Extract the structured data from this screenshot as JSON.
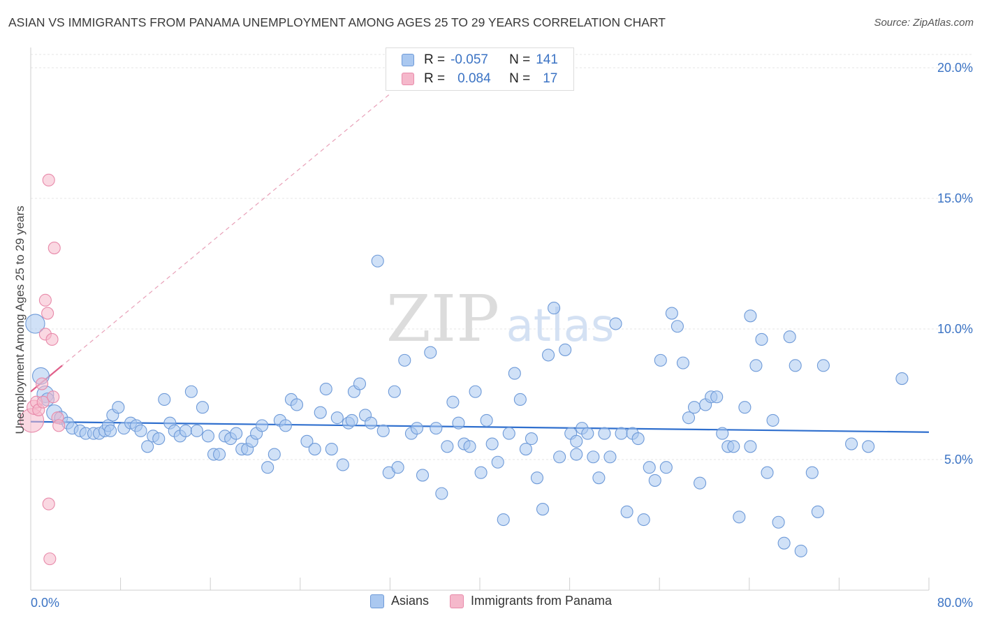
{
  "title": "ASIAN VS IMMIGRANTS FROM PANAMA UNEMPLOYMENT AMONG AGES 25 TO 29 YEARS CORRELATION CHART",
  "source": "Source: ZipAtlas.com",
  "watermark": {
    "zip": "ZIP",
    "atlas": "atlas"
  },
  "stats": [
    {
      "r_label": "R =",
      "r_value": "-0.057",
      "n_label": "N =",
      "n_value": "141",
      "fill": "#aac8f0",
      "stroke": "#6e9ad8"
    },
    {
      "r_label": "R =",
      "r_value": "0.084",
      "n_label": "N =",
      "n_value": "17",
      "fill": "#f5b8cb",
      "stroke": "#e88aaa"
    }
  ],
  "legend": [
    {
      "label": "Asians",
      "fill": "#aac8f0",
      "stroke": "#6e9ad8"
    },
    {
      "label": "Immigrants from Panama",
      "fill": "#f5b8cb",
      "stroke": "#e88aaa"
    }
  ],
  "chart_data": {
    "type": "scatter",
    "title": "ASIAN VS IMMIGRANTS FROM PANAMA UNEMPLOYMENT AMONG AGES 25 TO 29 YEARS CORRELATION CHART",
    "xlabel": "",
    "ylabel": "Unemployment Among Ages 25 to 29 years",
    "xlim": [
      0,
      80
    ],
    "ylim": [
      0,
      20
    ],
    "x_tick_labels": [
      "0.0%",
      "80.0%"
    ],
    "y_ticks": [
      5,
      10,
      15,
      20
    ],
    "y_tick_labels": [
      "5.0%",
      "10.0%",
      "15.0%",
      "20.0%"
    ],
    "grid": true,
    "series": [
      {
        "name": "Asians",
        "color": "#6e9ad8",
        "fill": "#aac8f0",
        "trend": {
          "x": [
            0,
            80
          ],
          "y": [
            6.45,
            6.05
          ]
        },
        "points": [
          [
            0.4,
            10.2,
            1.6
          ],
          [
            0.9,
            8.2,
            1.4
          ],
          [
            1.3,
            7.5,
            1.4
          ],
          [
            1.5,
            7.3,
            1.1
          ],
          [
            2.1,
            6.8,
            1.3
          ],
          [
            2.7,
            6.6,
            1.1
          ],
          [
            3.3,
            6.4,
            1
          ],
          [
            3.7,
            6.2,
            1
          ],
          [
            4.4,
            6.1,
            1
          ],
          [
            4.9,
            6.0,
            1
          ],
          [
            5.6,
            6.0,
            1
          ],
          [
            6.1,
            6.0,
            1
          ],
          [
            6.6,
            6.1,
            1
          ],
          [
            6.9,
            6.3,
            1
          ],
          [
            7.1,
            6.1,
            1
          ],
          [
            7.3,
            6.7,
            1
          ],
          [
            7.8,
            7.0,
            1
          ],
          [
            8.3,
            6.2,
            1
          ],
          [
            8.9,
            6.4,
            1
          ],
          [
            9.4,
            6.3,
            1
          ],
          [
            9.8,
            6.1,
            1
          ],
          [
            10.4,
            5.5,
            1
          ],
          [
            10.9,
            5.9,
            1
          ],
          [
            11.4,
            5.8,
            1
          ],
          [
            11.9,
            7.3,
            1
          ],
          [
            12.4,
            6.4,
            1
          ],
          [
            12.8,
            6.1,
            1
          ],
          [
            13.3,
            5.9,
            1
          ],
          [
            13.8,
            6.1,
            1
          ],
          [
            14.3,
            7.6,
            1
          ],
          [
            14.8,
            6.1,
            1
          ],
          [
            15.3,
            7.0,
            1
          ],
          [
            15.8,
            5.9,
            1
          ],
          [
            16.3,
            5.2,
            1
          ],
          [
            16.8,
            5.2,
            1
          ],
          [
            17.3,
            5.9,
            1
          ],
          [
            17.8,
            5.8,
            1
          ],
          [
            18.3,
            6.0,
            1
          ],
          [
            18.8,
            5.4,
            1
          ],
          [
            19.3,
            5.4,
            1
          ],
          [
            19.7,
            5.7,
            1
          ],
          [
            20.1,
            6.0,
            1
          ],
          [
            20.6,
            6.3,
            1
          ],
          [
            21.1,
            4.7,
            1
          ],
          [
            21.7,
            5.2,
            1
          ],
          [
            22.2,
            6.5,
            1
          ],
          [
            22.7,
            6.3,
            1
          ],
          [
            23.2,
            7.3,
            1
          ],
          [
            23.7,
            7.1,
            1
          ],
          [
            24.6,
            5.7,
            1
          ],
          [
            25.3,
            5.4,
            1
          ],
          [
            25.8,
            6.8,
            1
          ],
          [
            26.3,
            7.7,
            1
          ],
          [
            26.8,
            5.4,
            1
          ],
          [
            27.3,
            6.6,
            1
          ],
          [
            27.8,
            4.8,
            1
          ],
          [
            28.3,
            6.4,
            1
          ],
          [
            28.8,
            7.6,
            1
          ],
          [
            29.3,
            7.9,
            1
          ],
          [
            29.8,
            6.7,
            1
          ],
          [
            30.3,
            6.4,
            1
          ],
          [
            30.9,
            12.6,
            1
          ],
          [
            31.4,
            6.1,
            1
          ],
          [
            31.9,
            4.5,
            1
          ],
          [
            32.4,
            7.6,
            1
          ],
          [
            32.7,
            4.7,
            1
          ],
          [
            33.3,
            8.8,
            1
          ],
          [
            33.9,
            6.0,
            1
          ],
          [
            34.4,
            6.2,
            1
          ],
          [
            34.9,
            4.4,
            1
          ],
          [
            35.6,
            9.1,
            1
          ],
          [
            36.1,
            6.2,
            1
          ],
          [
            36.6,
            3.7,
            1
          ],
          [
            37.1,
            5.5,
            1
          ],
          [
            37.6,
            7.2,
            1
          ],
          [
            38.1,
            6.4,
            1
          ],
          [
            38.6,
            5.6,
            1
          ],
          [
            39.1,
            5.5,
            1
          ],
          [
            39.6,
            7.6,
            1
          ],
          [
            40.1,
            4.5,
            1
          ],
          [
            40.6,
            6.5,
            1
          ],
          [
            41.1,
            5.6,
            1
          ],
          [
            41.6,
            4.9,
            1
          ],
          [
            42.1,
            2.7,
            1
          ],
          [
            42.6,
            6.0,
            1
          ],
          [
            43.1,
            8.3,
            1
          ],
          [
            43.6,
            7.3,
            1
          ],
          [
            44.1,
            5.4,
            1
          ],
          [
            44.6,
            5.8,
            1
          ],
          [
            45.1,
            4.3,
            1
          ],
          [
            45.6,
            3.1,
            1
          ],
          [
            46.1,
            9.0,
            1
          ],
          [
            46.6,
            10.8,
            1
          ],
          [
            47.1,
            5.1,
            1
          ],
          [
            47.6,
            9.2,
            1
          ],
          [
            48.1,
            6.0,
            1
          ],
          [
            48.6,
            5.7,
            1
          ],
          [
            49.1,
            6.2,
            1
          ],
          [
            49.6,
            6.0,
            1
          ],
          [
            50.1,
            5.1,
            1
          ],
          [
            50.6,
            4.3,
            1
          ],
          [
            51.1,
            6.0,
            1
          ],
          [
            51.6,
            5.1,
            1
          ],
          [
            52.1,
            10.2,
            1
          ],
          [
            52.6,
            6.0,
            1
          ],
          [
            53.1,
            3.0,
            1
          ],
          [
            53.6,
            6.0,
            1
          ],
          [
            54.1,
            5.8,
            1
          ],
          [
            54.6,
            2.7,
            1
          ],
          [
            55.1,
            4.7,
            1
          ],
          [
            55.6,
            4.2,
            1
          ],
          [
            56.1,
            8.8,
            1
          ],
          [
            56.6,
            4.7,
            1
          ],
          [
            57.1,
            10.6,
            1
          ],
          [
            57.6,
            10.1,
            1
          ],
          [
            58.1,
            8.7,
            1
          ],
          [
            58.6,
            6.6,
            1
          ],
          [
            59.1,
            7.0,
            1
          ],
          [
            59.6,
            4.1,
            1
          ],
          [
            60.1,
            7.1,
            1
          ],
          [
            60.6,
            7.4,
            1
          ],
          [
            61.1,
            7.4,
            1
          ],
          [
            61.6,
            6.0,
            1
          ],
          [
            62.1,
            5.5,
            1
          ],
          [
            62.6,
            5.5,
            1
          ],
          [
            63.1,
            2.8,
            1
          ],
          [
            63.6,
            7.0,
            1
          ],
          [
            64.1,
            10.5,
            1
          ],
          [
            64.6,
            8.6,
            1
          ],
          [
            65.1,
            9.6,
            1
          ],
          [
            65.6,
            4.5,
            1
          ],
          [
            66.1,
            6.5,
            1
          ],
          [
            66.6,
            2.6,
            1
          ],
          [
            67.1,
            1.8,
            1
          ],
          [
            67.6,
            9.7,
            1
          ],
          [
            68.1,
            8.6,
            1
          ],
          [
            68.6,
            1.5,
            1
          ],
          [
            69.6,
            4.5,
            1
          ],
          [
            70.1,
            3.0,
            1
          ],
          [
            70.6,
            8.6,
            1
          ],
          [
            73.1,
            5.6,
            1
          ],
          [
            74.6,
            5.5,
            1
          ],
          [
            77.6,
            8.1,
            1
          ],
          [
            64.1,
            5.5,
            1
          ],
          [
            48.6,
            5.2,
            1
          ],
          [
            28.6,
            6.5,
            1
          ]
        ]
      },
      {
        "name": "Immigrants from Panama",
        "color": "#e88aaa",
        "fill": "#f5b8cb",
        "trend": {
          "x": [
            0,
            2.8
          ],
          "y": [
            7.6,
            8.6
          ]
        },
        "trend_ext": {
          "x": [
            0,
            32
          ],
          "y": [
            7.6,
            19.0
          ]
        },
        "points": [
          [
            0.1,
            6.5,
            2.0
          ],
          [
            0.3,
            7.0,
            1.2
          ],
          [
            0.5,
            7.2,
            1
          ],
          [
            0.7,
            6.9,
            1
          ],
          [
            1.0,
            7.9,
            1
          ],
          [
            1.1,
            7.2,
            1
          ],
          [
            1.3,
            9.8,
            1
          ],
          [
            1.3,
            11.1,
            1
          ],
          [
            1.5,
            10.6,
            1
          ],
          [
            1.6,
            3.3,
            1
          ],
          [
            1.6,
            15.7,
            1
          ],
          [
            1.7,
            1.2,
            1
          ],
          [
            1.9,
            9.6,
            1
          ],
          [
            2.0,
            7.4,
            1
          ],
          [
            2.1,
            13.1,
            1
          ],
          [
            2.4,
            6.6,
            1
          ],
          [
            2.5,
            6.3,
            1
          ]
        ]
      }
    ]
  }
}
